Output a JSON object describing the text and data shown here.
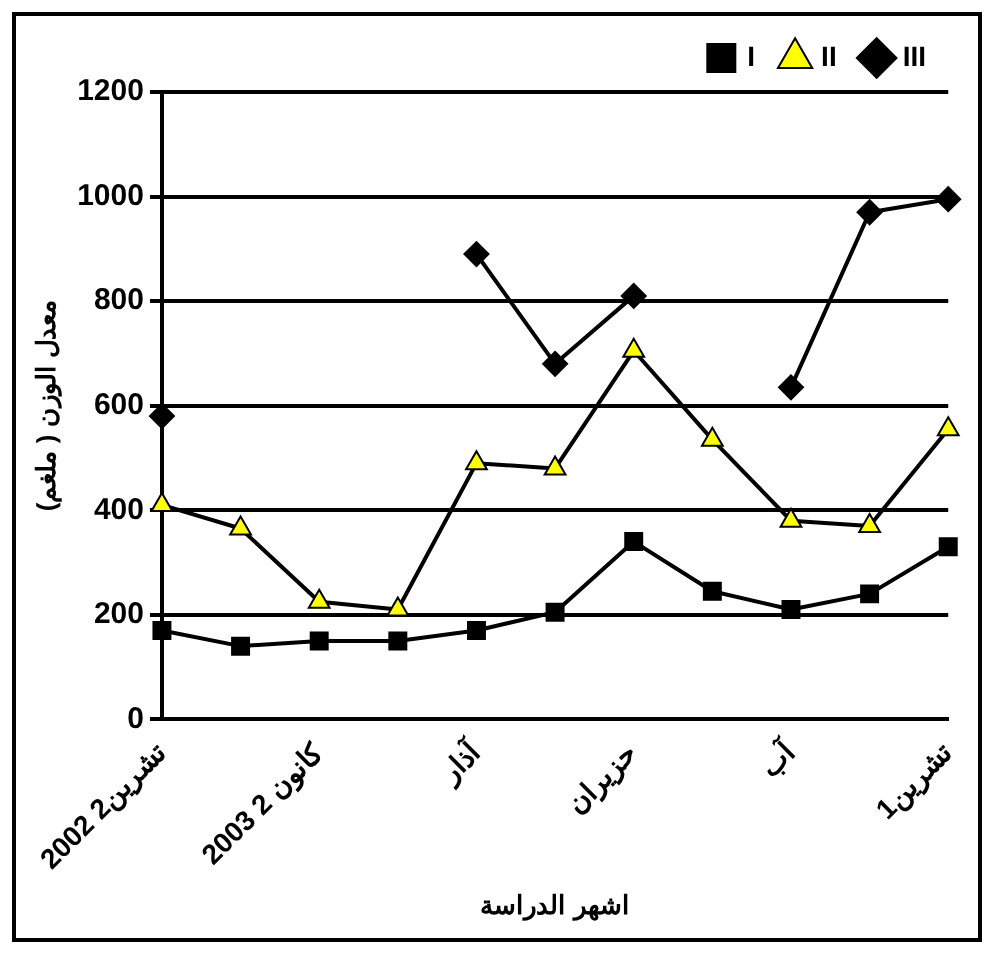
{
  "chart_data": {
    "type": "line",
    "xlabel": "اشهر الدراسة",
    "ylabel": "معدل الوزن ( ملغم)",
    "categories": [
      "تشرين2 2002",
      null,
      "كانون 2 2003",
      null,
      "آذار",
      null,
      "حزيران",
      null,
      "آب",
      null,
      "تشرين1"
    ],
    "series": [
      {
        "name": "I",
        "color": "#000000",
        "marker": "square",
        "values": [
          170,
          140,
          150,
          150,
          170,
          205,
          340,
          245,
          210,
          240,
          330
        ]
      },
      {
        "name": "II",
        "color": "#ffff00",
        "marker": "triangle",
        "values": [
          410,
          365,
          225,
          210,
          490,
          480,
          705,
          535,
          380,
          370,
          555
        ]
      },
      {
        "name": "III",
        "color": "#000000",
        "marker": "diamond",
        "values": [
          580,
          null,
          null,
          null,
          890,
          680,
          810,
          null,
          635,
          970,
          995
        ]
      }
    ],
    "ylim": [
      0,
      1200
    ],
    "yticks": [
      0,
      200,
      400,
      600,
      800,
      1000,
      1200
    ],
    "grid": "y",
    "legend": "top",
    "line_style": "solid"
  }
}
